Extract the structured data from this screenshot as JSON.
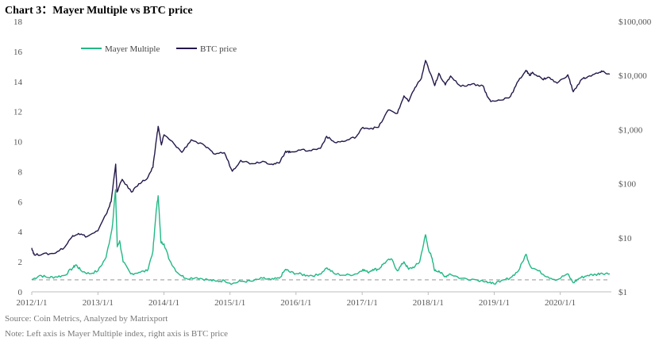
{
  "title": "Chart 3：Mayer Multiple vs BTC price",
  "source": "Source: Coin Metrics, Analyzed by Matrixport",
  "note": "Note: Left axis is Mayer Multiple index, right axis is BTC price",
  "colors": {
    "mayer": "#22b884",
    "btc": "#24184a",
    "baseline": "#aaaaaa"
  },
  "chart_data": {
    "type": "line",
    "x_range": [
      "2012-01-01",
      "2020-10-01"
    ],
    "x_ticks": [
      "2012/1/1",
      "2013/1/1",
      "2014/1/1",
      "2015/1/1",
      "2016/1/1",
      "2017/1/1",
      "2018/1/1",
      "2019/1/1",
      "2020/1/1"
    ],
    "y_left": {
      "min": 0,
      "max": 18,
      "ticks": [
        "0",
        "2",
        "4",
        "6",
        "8",
        "10",
        "12",
        "14",
        "16",
        "18"
      ]
    },
    "y_right": {
      "scale": "log",
      "min": 1,
      "max": 100000,
      "ticks": [
        "$1",
        "$10",
        "$100",
        "$1,000",
        "$10,000",
        "$100,000"
      ]
    },
    "legend_position": "top-left",
    "reference_line": {
      "axis": "left",
      "value": 0.8,
      "style": "dashed"
    },
    "series": [
      {
        "name": "Mayer Multiple",
        "axis": "left",
        "points": [
          [
            "2012-01-01",
            0.8
          ],
          [
            "2012-02-15",
            1.1
          ],
          [
            "2012-04-01",
            0.95
          ],
          [
            "2012-05-15",
            1.0
          ],
          [
            "2012-07-01",
            1.1
          ],
          [
            "2012-08-15",
            1.6
          ],
          [
            "2012-09-01",
            1.8
          ],
          [
            "2012-10-01",
            1.4
          ],
          [
            "2012-11-15",
            1.2
          ],
          [
            "2013-01-01",
            1.4
          ],
          [
            "2013-02-15",
            2.3
          ],
          [
            "2013-03-20",
            4.2
          ],
          [
            "2013-04-08",
            6.8
          ],
          [
            "2013-04-18",
            3.0
          ],
          [
            "2013-05-01",
            3.4
          ],
          [
            "2013-05-20",
            2.0
          ],
          [
            "2013-07-01",
            1.2
          ],
          [
            "2013-08-15",
            1.3
          ],
          [
            "2013-10-01",
            1.4
          ],
          [
            "2013-11-01",
            2.7
          ],
          [
            "2013-11-20",
            5.5
          ],
          [
            "2013-11-30",
            6.4
          ],
          [
            "2013-12-15",
            3.3
          ],
          [
            "2014-01-01",
            3.2
          ],
          [
            "2014-02-01",
            2.1
          ],
          [
            "2014-03-15",
            1.3
          ],
          [
            "2014-05-01",
            0.9
          ],
          [
            "2014-07-01",
            0.95
          ],
          [
            "2014-09-01",
            0.8
          ],
          [
            "2014-10-15",
            0.7
          ],
          [
            "2014-12-01",
            0.75
          ],
          [
            "2015-01-15",
            0.55
          ],
          [
            "2015-03-01",
            0.7
          ],
          [
            "2015-05-01",
            0.7
          ],
          [
            "2015-07-01",
            0.9
          ],
          [
            "2015-08-15",
            0.8
          ],
          [
            "2015-10-01",
            0.9
          ],
          [
            "2015-11-05",
            1.5
          ],
          [
            "2015-12-01",
            1.3
          ],
          [
            "2016-01-15",
            1.2
          ],
          [
            "2016-03-01",
            1.1
          ],
          [
            "2016-05-01",
            1.1
          ],
          [
            "2016-06-20",
            1.6
          ],
          [
            "2016-08-01",
            1.2
          ],
          [
            "2016-10-01",
            1.1
          ],
          [
            "2016-12-01",
            1.2
          ],
          [
            "2017-01-05",
            1.5
          ],
          [
            "2017-02-01",
            1.3
          ],
          [
            "2017-03-01",
            1.5
          ],
          [
            "2017-04-01",
            1.5
          ],
          [
            "2017-05-01",
            1.9
          ],
          [
            "2017-06-10",
            2.2
          ],
          [
            "2017-07-15",
            1.4
          ],
          [
            "2017-08-20",
            2.0
          ],
          [
            "2017-09-15",
            1.5
          ],
          [
            "2017-10-20",
            1.7
          ],
          [
            "2017-11-15",
            2.0
          ],
          [
            "2017-12-17",
            3.8
          ],
          [
            "2018-01-01",
            2.9
          ],
          [
            "2018-01-20",
            2.3
          ],
          [
            "2018-02-06",
            1.4
          ],
          [
            "2018-03-01",
            1.4
          ],
          [
            "2018-04-01",
            1.0
          ],
          [
            "2018-05-01",
            1.2
          ],
          [
            "2018-07-01",
            0.9
          ],
          [
            "2018-09-01",
            0.85
          ],
          [
            "2018-11-20",
            0.7
          ],
          [
            "2018-12-15",
            0.55
          ],
          [
            "2019-02-01",
            0.65
          ],
          [
            "2019-04-01",
            0.95
          ],
          [
            "2019-05-15",
            1.4
          ],
          [
            "2019-06-26",
            2.5
          ],
          [
            "2019-07-20",
            1.7
          ],
          [
            "2019-09-01",
            1.4
          ],
          [
            "2019-10-25",
            1.0
          ],
          [
            "2019-12-15",
            0.8
          ],
          [
            "2020-02-10",
            1.2
          ],
          [
            "2020-03-13",
            0.6
          ],
          [
            "2020-04-15",
            0.9
          ],
          [
            "2020-06-01",
            1.1
          ],
          [
            "2020-07-15",
            1.15
          ],
          [
            "2020-08-15",
            1.25
          ],
          [
            "2020-10-01",
            1.2
          ]
        ]
      },
      {
        "name": "BTC price",
        "axis": "right",
        "points": [
          [
            "2012-01-01",
            6.5
          ],
          [
            "2012-01-15",
            4.8
          ],
          [
            "2012-03-01",
            5.0
          ],
          [
            "2012-05-01",
            5.1
          ],
          [
            "2012-07-01",
            6.7
          ],
          [
            "2012-08-15",
            11
          ],
          [
            "2012-09-15",
            12
          ],
          [
            "2012-11-01",
            10.5
          ],
          [
            "2013-01-01",
            13.5
          ],
          [
            "2013-02-15",
            27
          ],
          [
            "2013-03-15",
            47
          ],
          [
            "2013-04-09",
            230
          ],
          [
            "2013-04-16",
            70
          ],
          [
            "2013-05-15",
            120
          ],
          [
            "2013-07-05",
            70
          ],
          [
            "2013-08-15",
            100
          ],
          [
            "2013-10-01",
            125
          ],
          [
            "2013-11-01",
            200
          ],
          [
            "2013-11-20",
            650
          ],
          [
            "2013-11-30",
            1150
          ],
          [
            "2013-12-18",
            520
          ],
          [
            "2014-01-01",
            800
          ],
          [
            "2014-02-25",
            550
          ],
          [
            "2014-04-10",
            380
          ],
          [
            "2014-06-01",
            650
          ],
          [
            "2014-08-15",
            500
          ],
          [
            "2014-10-01",
            360
          ],
          [
            "2014-12-01",
            375
          ],
          [
            "2015-01-14",
            170
          ],
          [
            "2015-03-01",
            270
          ],
          [
            "2015-05-01",
            235
          ],
          [
            "2015-07-01",
            260
          ],
          [
            "2015-08-20",
            230
          ],
          [
            "2015-10-01",
            240
          ],
          [
            "2015-11-05",
            400
          ],
          [
            "2015-12-01",
            380
          ],
          [
            "2016-01-15",
            420
          ],
          [
            "2016-03-15",
            410
          ],
          [
            "2016-05-15",
            450
          ],
          [
            "2016-06-18",
            750
          ],
          [
            "2016-08-01",
            580
          ],
          [
            "2016-10-01",
            615
          ],
          [
            "2016-12-01",
            750
          ],
          [
            "2017-01-05",
            1100
          ],
          [
            "2017-02-15",
            1050
          ],
          [
            "2017-04-01",
            1100
          ],
          [
            "2017-05-25",
            2300
          ],
          [
            "2017-07-15",
            2000
          ],
          [
            "2017-08-20",
            4200
          ],
          [
            "2017-09-15",
            3300
          ],
          [
            "2017-10-20",
            6000
          ],
          [
            "2017-11-25",
            9000
          ],
          [
            "2017-12-17",
            19000
          ],
          [
            "2018-01-01",
            14000
          ],
          [
            "2018-02-06",
            6500
          ],
          [
            "2018-03-01",
            11000
          ],
          [
            "2018-04-06",
            6700
          ],
          [
            "2018-05-05",
            9800
          ],
          [
            "2018-07-01",
            6300
          ],
          [
            "2018-09-01",
            7000
          ],
          [
            "2018-11-01",
            6400
          ],
          [
            "2018-11-25",
            4000
          ],
          [
            "2018-12-15",
            3300
          ],
          [
            "2019-02-01",
            3500
          ],
          [
            "2019-04-01",
            4100
          ],
          [
            "2019-05-15",
            8000
          ],
          [
            "2019-06-26",
            12500
          ],
          [
            "2019-07-15",
            10000
          ],
          [
            "2019-08-01",
            11500
          ],
          [
            "2019-09-25",
            8500
          ],
          [
            "2019-10-26",
            9300
          ],
          [
            "2019-12-15",
            7200
          ],
          [
            "2020-02-12",
            10300
          ],
          [
            "2020-03-13",
            5000
          ],
          [
            "2020-04-30",
            8600
          ],
          [
            "2020-06-01",
            9500
          ],
          [
            "2020-07-27",
            11000
          ],
          [
            "2020-08-20",
            11800
          ],
          [
            "2020-10-01",
            10600
          ]
        ]
      }
    ]
  }
}
